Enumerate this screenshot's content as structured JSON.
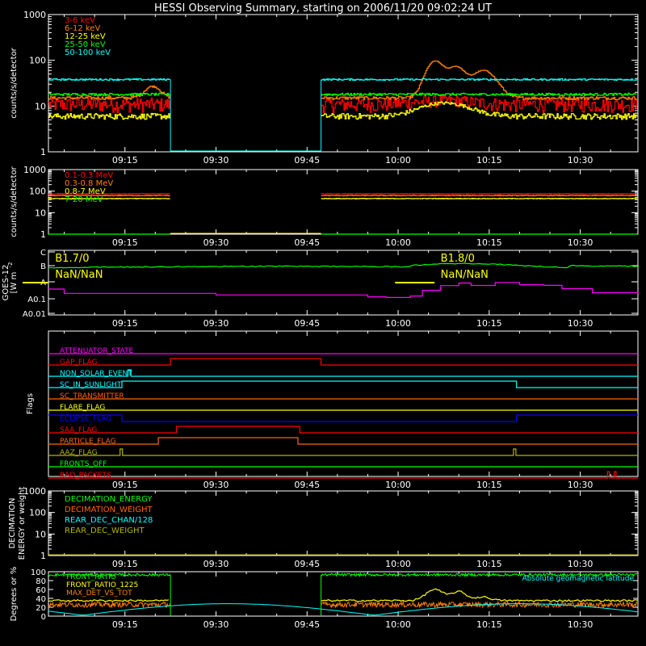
{
  "title": "HESSI Observing Summary, starting on 2006/11/20 09:02:24 UT",
  "time_ticks": [
    "09:15",
    "09:30",
    "09:45",
    "10:00",
    "10:15",
    "10:30"
  ],
  "time_tick_minutes": [
    15,
    30,
    45,
    60,
    75,
    90
  ],
  "time_range_minutes": [
    2.4,
    99.5
  ],
  "colors": {
    "magenta": "#ff00ff",
    "red": "#ff0000",
    "orange": "#ff7f00",
    "yellow": "#ffff00",
    "green": "#00ff00",
    "cyan": "#00ffff",
    "blue": "#0000ff",
    "olive": "#b4b400",
    "darkorange": "#ff6400",
    "axis": "#ffffff"
  },
  "chart_data": [
    {
      "id": "lc1",
      "type": "line",
      "ylabel": "counts/s/detector",
      "yscale": "log",
      "ylim": [
        1,
        1000
      ],
      "yticks": [
        "1",
        "10",
        "100",
        "1000"
      ],
      "gap_minutes": [
        22.5,
        47.3
      ],
      "series": [
        {
          "name": "3-6 keV",
          "color": "red",
          "base": 11,
          "noise": 0.35,
          "bumps": [
            [
              66,
              1.5,
              4
            ],
            [
              70,
              1.2,
              3
            ]
          ]
        },
        {
          "name": "6-12 keV",
          "color": "orange",
          "base": 15,
          "noise": 0.08,
          "bumps": [
            [
              66,
              80,
              1.3
            ],
            [
              69.5,
              55,
              1.3
            ],
            [
              74,
              45,
              1.8
            ],
            [
              19.5,
              12,
              1.2
            ]
          ]
        },
        {
          "name": "12-25 keV",
          "color": "yellow",
          "base": 6,
          "noise": 0.15,
          "bumps": [
            [
              66,
              4,
              3
            ],
            [
              70,
              3,
              3
            ]
          ]
        },
        {
          "name": "25-50 keV",
          "color": "green",
          "base": 18,
          "noise": 0.06,
          "bumps": []
        },
        {
          "name": "50-100 keV",
          "color": "cyan",
          "base": 38,
          "noise": 0.04,
          "bumps": []
        }
      ]
    },
    {
      "id": "lc2",
      "type": "line",
      "ylabel": "counts/s/detector",
      "yscale": "log",
      "ylim": [
        1,
        1000
      ],
      "yticks": [
        "1",
        "10",
        "100",
        "1000"
      ],
      "gap_minutes": [
        22.5,
        47.3
      ],
      "series": [
        {
          "name": "0.1-0.3 MeV",
          "color": "red",
          "base": 75,
          "noise": 0.03,
          "bumps": []
        },
        {
          "name": "0.3-0.8 MeV",
          "color": "orange",
          "base": 62,
          "noise": 0.03,
          "bumps": []
        },
        {
          "name": "0.8-7 MeV",
          "color": "yellow",
          "base": 45,
          "noise": 0.03,
          "bumps": []
        },
        {
          "name": "7-20 MeV",
          "color": "green",
          "base": 1,
          "noise": 0.0,
          "bumps": []
        }
      ]
    },
    {
      "id": "goes",
      "type": "line",
      "ylabel": "GOES-12",
      "ylabel2": "[W m",
      "ylabel2_sup": "-2",
      "class_labels": [
        "C",
        "B",
        "A",
        "A0.1",
        "A0.01"
      ],
      "annotations": [
        {
          "text": "B1.7/0",
          "minute": 3.5
        },
        {
          "text": "NaN/NaN",
          "minute": 3.5
        },
        {
          "text": "B1.8/0",
          "minute": 67
        },
        {
          "text": "NaN/NaN",
          "minute": 67
        }
      ],
      "long_level_start": 2.0,
      "short_level_start": 0.8
    },
    {
      "id": "flags",
      "type": "step",
      "ylabel": "Flags",
      "flags": [
        {
          "name": "ATTENUATOR_STATE",
          "color": "magenta",
          "segments": [
            [
              2.4,
              99.5,
              0
            ]
          ]
        },
        {
          "name": "GAP_FLAG",
          "color": "red",
          "segments": [
            [
              2.4,
              22.5,
              0
            ],
            [
              22.5,
              47.3,
              1
            ],
            [
              47.3,
              99.5,
              0
            ]
          ]
        },
        {
          "name": "NON_SOLAR_EVENT",
          "color": "cyan",
          "segments": [
            [
              2.4,
              15.5,
              0
            ],
            [
              15.5,
              16.0,
              1
            ],
            [
              16.0,
              99.5,
              0
            ]
          ]
        },
        {
          "name": "SC_IN_SUNLIGHT",
          "color": "cyan",
          "segments": [
            [
              2.4,
              14.5,
              0
            ],
            [
              14.5,
              79.5,
              1
            ],
            [
              79.5,
              99.5,
              0
            ]
          ]
        },
        {
          "name": "SC_TRANSMITTER",
          "color": "darkorange",
          "segments": [
            [
              2.4,
              99.5,
              0
            ]
          ]
        },
        {
          "name": "FLARE_FLAG",
          "color": "yellow",
          "segments": [
            [
              2.4,
              99.5,
              0
            ]
          ]
        },
        {
          "name": "ECLIPSE_FLAG",
          "color": "blue",
          "segments": [
            [
              2.4,
              14.5,
              1
            ],
            [
              14.5,
              79.5,
              0
            ],
            [
              79.5,
              99.5,
              1
            ]
          ]
        },
        {
          "name": "SAA_FLAG",
          "color": "red",
          "segments": [
            [
              2.4,
              23.5,
              0
            ],
            [
              23.5,
              43.8,
              1
            ],
            [
              43.8,
              99.5,
              0
            ]
          ]
        },
        {
          "name": "PARTICLE_FLAG",
          "color": "darkorange",
          "segments": [
            [
              2.4,
              20.5,
              0
            ],
            [
              20.5,
              43.5,
              1
            ],
            [
              43.5,
              99.5,
              0
            ]
          ]
        },
        {
          "name": "AAZ_FLAG",
          "color": "olive",
          "segments": [
            [
              2.4,
              14.2,
              0
            ],
            [
              14.2,
              14.6,
              1
            ],
            [
              14.6,
              79.0,
              0
            ],
            [
              79.0,
              79.4,
              1
            ],
            [
              79.4,
              99.5,
              0
            ]
          ]
        },
        {
          "name": "FRONTS_OFF",
          "color": "green",
          "segments": [
            [
              2.4,
              99.5,
              0
            ]
          ]
        },
        {
          "name": "BAD_PACKETS",
          "color": "red",
          "segments": [
            [
              2.4,
              94.5,
              0
            ],
            [
              94.5,
              94.8,
              1
            ],
            [
              94.8,
              95.6,
              0
            ],
            [
              95.6,
              95.9,
              1
            ],
            [
              95.9,
              99.5,
              0
            ]
          ]
        }
      ]
    },
    {
      "id": "dec",
      "type": "line",
      "ylabel": "DECIMATION",
      "ylabel2": "ENERGY or weight",
      "yscale": "log",
      "ylim": [
        1,
        1000
      ],
      "yticks": [
        "1",
        "10",
        "100",
        "1000"
      ],
      "series": [
        {
          "name": "DECIMATION_ENERGY",
          "color": "green"
        },
        {
          "name": "DECIMATION_WEIGHT",
          "color": "darkorange"
        },
        {
          "name": "REAR_DEC_CHAN/128",
          "color": "cyan"
        },
        {
          "name": "REAR_DEC_WEIGHT",
          "color": "olive"
        }
      ]
    },
    {
      "id": "ratio",
      "type": "line",
      "ylabel": "Degrees or %",
      "ylim": [
        0,
        100
      ],
      "yticks": [
        "0",
        "20",
        "40",
        "60",
        "80",
        "100"
      ],
      "gap_minutes": [
        22.5,
        47.3
      ],
      "note": "Absolute geomagnetic latitude",
      "series": [
        {
          "name": "FRONT_RATIO",
          "color": "green",
          "base": 93,
          "noise": 3
        },
        {
          "name": "FRONT_RATIO_1225",
          "color": "yellow",
          "base": 35,
          "noise": 2
        },
        {
          "name": "MAX_DET_VS_TOT",
          "color": "orange",
          "base": 26,
          "noise": 6
        },
        {
          "name": "Absolute geomagnetic latitude",
          "color": "cyan"
        }
      ]
    }
  ]
}
